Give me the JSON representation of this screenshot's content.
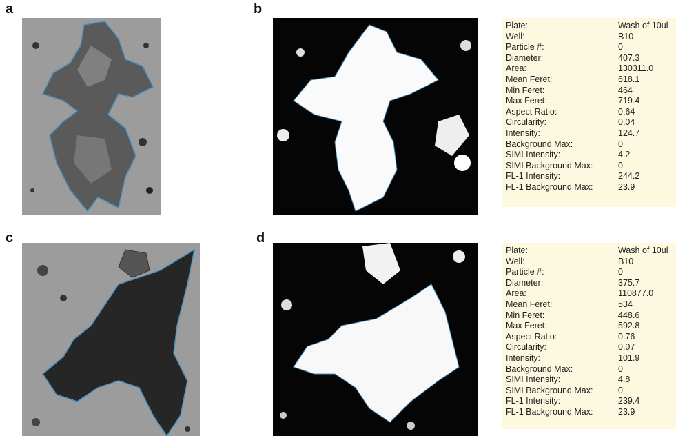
{
  "panels": [
    {
      "label": "a"
    },
    {
      "label": "b"
    },
    {
      "label": "c"
    },
    {
      "label": "d"
    }
  ],
  "tables": [
    {
      "rows": [
        [
          "Plate:",
          "Wash of 10ul"
        ],
        [
          "Well:",
          "B10"
        ],
        [
          "Particle #:",
          "0"
        ],
        [
          "Diameter:",
          "407.3"
        ],
        [
          "Area:",
          "130311.0"
        ],
        [
          "Mean Feret:",
          "618.1"
        ],
        [
          "Min Feret:",
          "464"
        ],
        [
          "Max Feret:",
          "719.4"
        ],
        [
          "Aspect Ratio:",
          "0.64"
        ],
        [
          "Circularity:",
          "0.04"
        ],
        [
          "Intensity:",
          "124.7"
        ],
        [
          "Background Max:",
          "0"
        ],
        [
          "SIMI Intensity:",
          "4.2"
        ],
        [
          "SIMI Background Max:",
          "0"
        ],
        [
          "FL-1 Intensity:",
          "244.2"
        ],
        [
          "FL-1 Background Max:",
          "23.9"
        ]
      ]
    },
    {
      "rows": [
        [
          "Plate:",
          "Wash of 10ul"
        ],
        [
          "Well:",
          "B10"
        ],
        [
          "Particle #:",
          "0"
        ],
        [
          "Diameter:",
          "375.7"
        ],
        [
          "Area:",
          "110877.0"
        ],
        [
          "Mean Feret:",
          "534"
        ],
        [
          "Min Feret:",
          "448.6"
        ],
        [
          "Max Feret:",
          "592.8"
        ],
        [
          "Aspect Ratio:",
          "0.76"
        ],
        [
          "Circularity:",
          "0.07"
        ],
        [
          "Intensity:",
          "101.9"
        ],
        [
          "Background Max:",
          "0"
        ],
        [
          "SIMI Intensity:",
          "4.8"
        ],
        [
          "SIMI Background Max:",
          "0"
        ],
        [
          "FL-1 Intensity:",
          "239.4"
        ],
        [
          "FL-1 Background Max:",
          "23.9"
        ]
      ]
    }
  ]
}
